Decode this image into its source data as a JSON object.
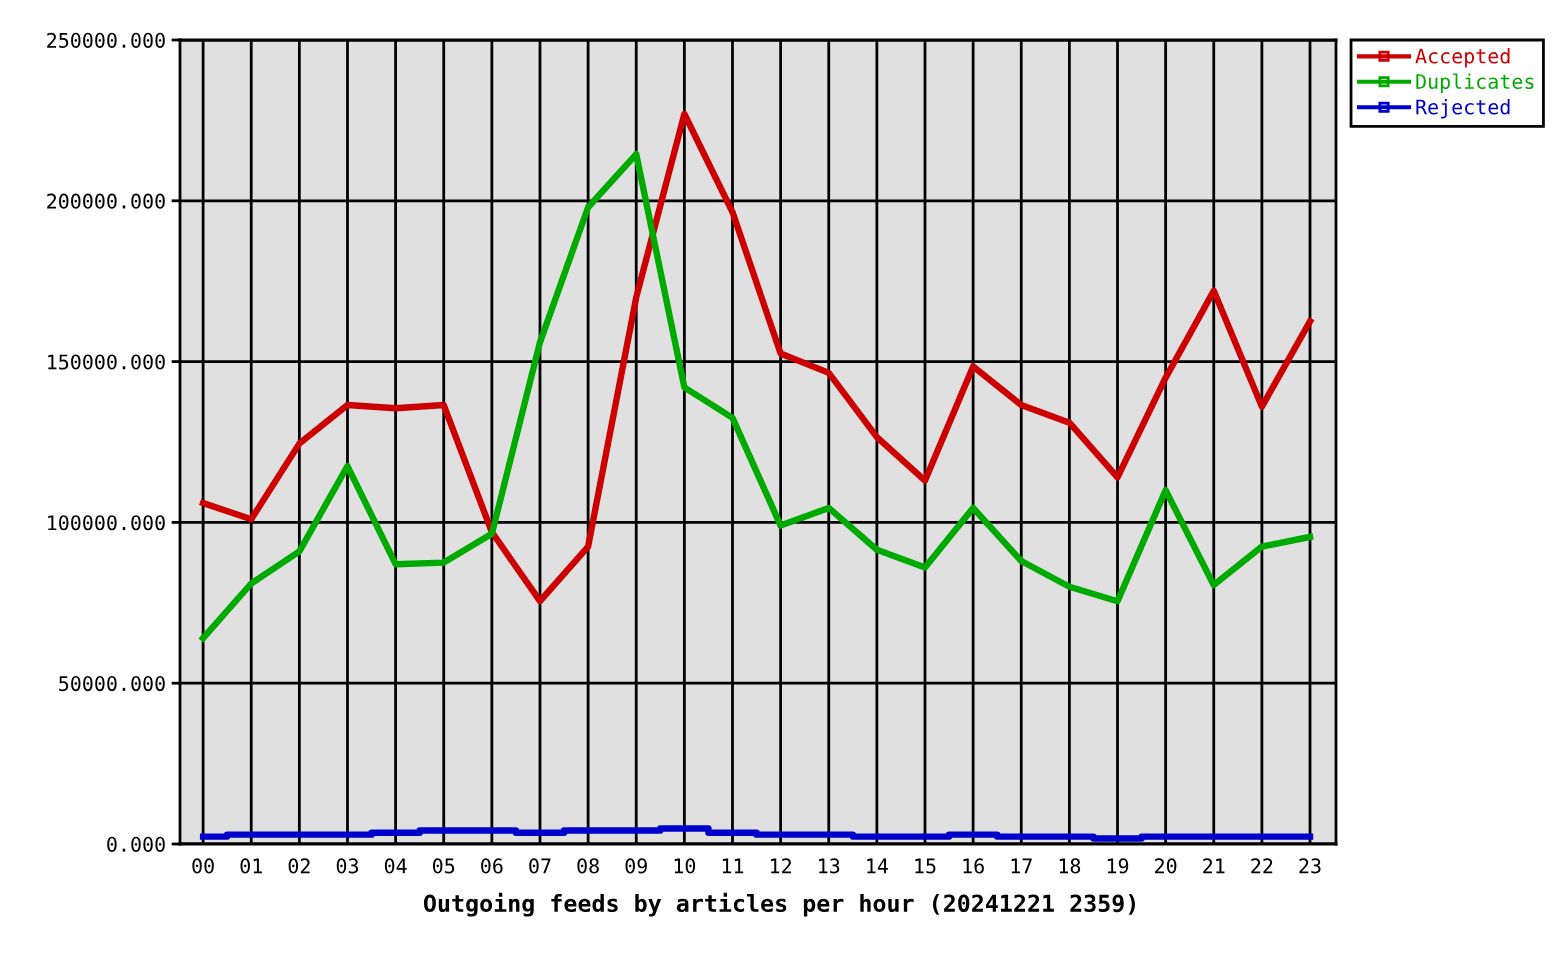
{
  "chart_data": {
    "type": "line",
    "title": "Outgoing feeds by articles per hour (20241221 2359)",
    "categories": [
      "00",
      "01",
      "02",
      "03",
      "04",
      "05",
      "06",
      "07",
      "08",
      "09",
      "10",
      "11",
      "12",
      "13",
      "14",
      "15",
      "16",
      "17",
      "18",
      "19",
      "20",
      "21",
      "22",
      "23"
    ],
    "series": [
      {
        "name": "Accepted",
        "color": "#cc0000",
        "values": [
          106000,
          101000,
          124500,
          136500,
          135500,
          136500,
          97000,
          75500,
          92500,
          170000,
          227000,
          196500,
          152500,
          146500,
          126500,
          113000,
          148500,
          136500,
          131000,
          114000,
          145000,
          172000,
          136000,
          162500
        ]
      },
      {
        "name": "Duplicates",
        "color": "#00aa00",
        "values": [
          64000,
          81000,
          91000,
          117500,
          87000,
          87500,
          96500,
          156000,
          198000,
          214500,
          142000,
          132500,
          99000,
          104500,
          91500,
          86000,
          104500,
          88000,
          80000,
          75500,
          110000,
          80500,
          92500,
          95500
        ]
      },
      {
        "name": "Rejected",
        "color": "#0000cc",
        "type": "step",
        "values": [
          2300,
          2900,
          2900,
          2900,
          3500,
          4200,
          4200,
          3500,
          4200,
          4200,
          4800,
          3500,
          2900,
          2900,
          2300,
          2300,
          2900,
          2300,
          2300,
          1700,
          2300,
          2300,
          2300,
          2300
        ]
      }
    ],
    "ylim": [
      0,
      250000
    ],
    "yticks": [
      {
        "value": 0,
        "label": "0.000"
      },
      {
        "value": 50000,
        "label": "50000.000"
      },
      {
        "value": 100000,
        "label": "100000.000"
      },
      {
        "value": 150000,
        "label": "150000.000"
      },
      {
        "value": 200000,
        "label": "200000.000"
      },
      {
        "value": 250000,
        "label": "250000.000"
      }
    ],
    "grid": true,
    "legend": "top right"
  }
}
